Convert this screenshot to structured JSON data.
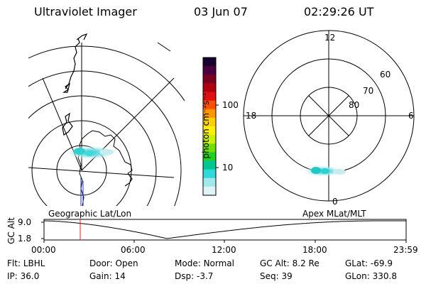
{
  "header": {
    "instrument": "Ultraviolet Imager",
    "date": "03 Jun 07",
    "time": "02:29:26 UT"
  },
  "geo_panel": {
    "label": "Geographic Lat/Lon"
  },
  "polar_panel": {
    "label": "Apex MLat/MLT",
    "mlt_labels": {
      "top": "12",
      "left": "18",
      "right": "6",
      "bottom": "0"
    },
    "lat_labels": [
      "60",
      "70",
      "80"
    ]
  },
  "colorbar": {
    "unit_label": "photon cm⁻²s⁻¹",
    "ticks": [
      "100",
      "10"
    ],
    "colors": [
      "#1a0030",
      "#4a0040",
      "#7a0020",
      "#b00010",
      "#e01010",
      "#ff5000",
      "#ff9800",
      "#ffd000",
      "#fff000",
      "#c8f000",
      "#70e000",
      "#20d020",
      "#00c890",
      "#30d8d8",
      "#a0e8ec",
      "#e0f4f6"
    ]
  },
  "timeline": {
    "y_title": "GC Alt",
    "y_ticks": [
      "9.0",
      "1.8"
    ],
    "x_ticks": [
      "00:00",
      "06:00",
      "12:00",
      "18:00",
      "23:59"
    ]
  },
  "info": {
    "row1": [
      {
        "label": "Flt:",
        "value": "LBHL"
      },
      {
        "label": "Door:",
        "value": "Open"
      },
      {
        "label": "Mode:",
        "value": "Normal"
      },
      {
        "label": "GC Alt:",
        "value": "8.2 Re"
      },
      {
        "label": "GLat:",
        "value": "-69.9"
      }
    ],
    "row2": [
      {
        "label": "IP:",
        "value": "36.0"
      },
      {
        "label": "Gain:",
        "value": "14"
      },
      {
        "label": "Dsp:",
        "value": "-3.7"
      },
      {
        "label": "Seq:",
        "value": "39"
      },
      {
        "label": "GLon:",
        "value": "330.8"
      }
    ]
  }
}
